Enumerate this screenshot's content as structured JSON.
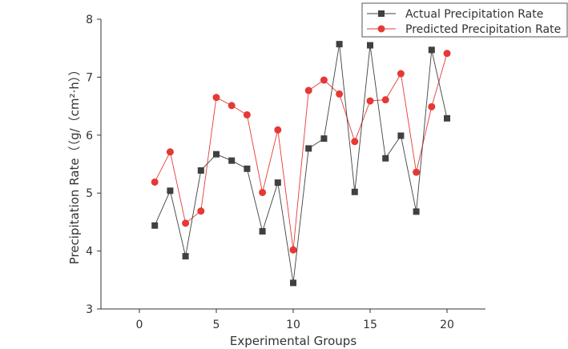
{
  "chart_data": {
    "type": "line",
    "title": "",
    "xlabel": "Experimental Groups",
    "ylabel": "Precipitation Rate（（g/（cm²·h））",
    "xlim": [
      -2.5,
      22.5
    ],
    "ylim": [
      3,
      8
    ],
    "x_ticks": [
      0,
      5,
      10,
      15,
      20
    ],
    "y_ticks": [
      3,
      4,
      5,
      6,
      7,
      8
    ],
    "legend_position": "top-right",
    "x": [
      1,
      2,
      3,
      4,
      5,
      6,
      7,
      8,
      9,
      10,
      11,
      12,
      13,
      14,
      15,
      16,
      17,
      18,
      19,
      20
    ],
    "series": [
      {
        "name": "Actual Precipitation Rate",
        "marker": "square",
        "color": "#404040",
        "values": [
          4.44,
          5.04,
          3.91,
          5.39,
          5.67,
          5.56,
          5.42,
          4.34,
          5.18,
          3.45,
          5.77,
          5.94,
          7.57,
          5.02,
          7.55,
          5.6,
          5.99,
          4.68,
          7.47,
          6.29
        ]
      },
      {
        "name": "Predicted Precipitation Rate",
        "marker": "circle",
        "color": "#e53935",
        "values": [
          5.19,
          5.71,
          4.48,
          4.69,
          6.65,
          6.51,
          6.35,
          5.01,
          6.09,
          4.02,
          6.77,
          6.95,
          6.71,
          5.89,
          6.59,
          6.61,
          7.06,
          5.36,
          6.49,
          7.41
        ]
      }
    ]
  }
}
